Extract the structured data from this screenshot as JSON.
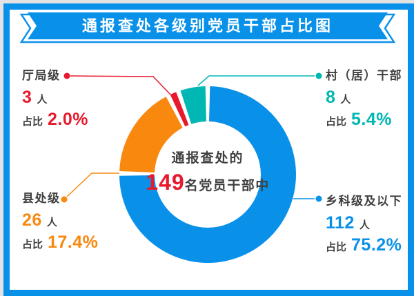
{
  "theme": {
    "page_bg": "#e3e3e3",
    "card_bg": "#ffffff",
    "blue": "#0991ea",
    "red": "#e7192d",
    "orange": "#f9880f",
    "teal": "#00b7b3",
    "dark": "#3f3f3f",
    "banner_text": "#ffffff"
  },
  "banner": {
    "title": "通报查处各级别党员干部占比图"
  },
  "center": {
    "line1": "通报查处的",
    "total": "149",
    "suffix": "名党员干部中"
  },
  "labels": {
    "unit": "人",
    "ratio_prefix": "占比"
  },
  "chart_data": {
    "type": "pie",
    "subtype": "donut",
    "title": "通报查处各级别党员干部占比图",
    "center_text": "通报查处的149名党员干部中",
    "total_count": 149,
    "unit": "人",
    "start_angle": "top",
    "direction": "clockwise",
    "slice_gap_deg": 3,
    "series": [
      {
        "name": "乡科级及以下",
        "count": 112,
        "pct": 75.2,
        "pct_text": "75.2%",
        "color": "#0991ea"
      },
      {
        "name": "县处级",
        "count": 26,
        "pct": 17.4,
        "pct_text": "17.4%",
        "color": "#f9880f"
      },
      {
        "name": "厅局级",
        "count": 3,
        "pct": 2.0,
        "pct_text": "2.0%",
        "color": "#e7192d"
      },
      {
        "name": "村（居）干部",
        "count": 8,
        "pct": 5.4,
        "pct_text": "5.4%",
        "color": "#00b7b3"
      }
    ]
  }
}
